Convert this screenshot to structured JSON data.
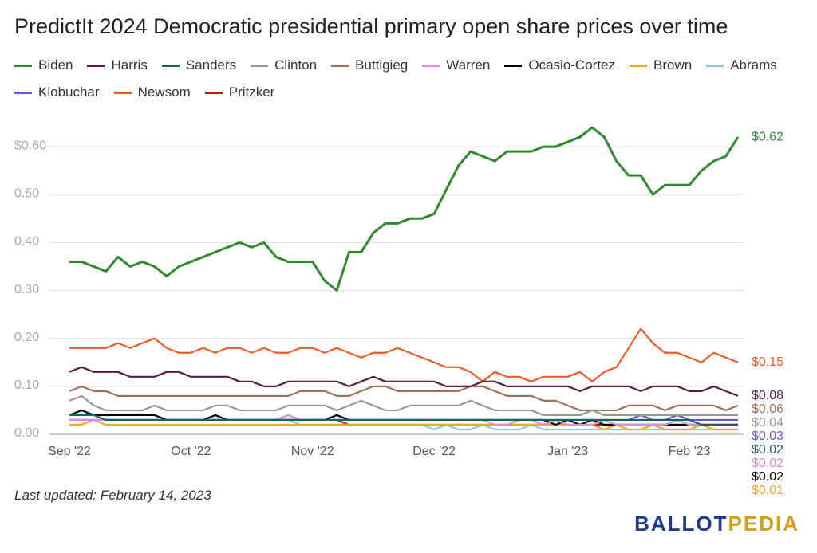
{
  "title": "PredictIt 2024 Democratic presidential primary open share prices over time",
  "note": "Last updated: February 14, 2023",
  "logo": [
    "BALLOT",
    "PEDIA"
  ],
  "chart_data": {
    "type": "line",
    "categories": [
      "Sep '22",
      null,
      null,
      null,
      null,
      null,
      null,
      null,
      null,
      null,
      "Oct '22",
      null,
      null,
      null,
      null,
      null,
      null,
      null,
      null,
      null,
      "Nov '22",
      null,
      null,
      null,
      null,
      null,
      null,
      null,
      null,
      null,
      "Dec '22",
      null,
      null,
      null,
      null,
      null,
      null,
      null,
      null,
      null,
      null,
      "Jan '23",
      null,
      null,
      null,
      null,
      null,
      null,
      null,
      null,
      null,
      "Feb '23",
      null,
      null,
      null,
      null
    ],
    "ylim": [
      0,
      0.65
    ],
    "yticks": [
      {
        "value": 0,
        "label": "0.00"
      },
      {
        "value": 0.1,
        "label": "0.10"
      },
      {
        "value": 0.2,
        "label": "0.20"
      },
      {
        "value": 0.3,
        "label": "0.30"
      },
      {
        "value": 0.4,
        "label": "0.40"
      },
      {
        "value": 0.5,
        "label": "0.50"
      },
      {
        "value": 0.6,
        "label": "$0.60"
      }
    ],
    "grid": true,
    "series": [
      {
        "name": "Biden",
        "color": "#2f8a2f",
        "end_label": "$0.62",
        "values": [
          0.36,
          0.36,
          0.35,
          0.34,
          0.37,
          0.35,
          0.36,
          0.35,
          0.33,
          0.35,
          0.36,
          0.37,
          0.38,
          0.39,
          0.4,
          0.39,
          0.4,
          0.37,
          0.36,
          0.36,
          0.36,
          0.32,
          0.3,
          0.38,
          0.38,
          0.42,
          0.44,
          0.44,
          0.45,
          0.45,
          0.46,
          0.51,
          0.56,
          0.59,
          0.58,
          0.57,
          0.59,
          0.59,
          0.59,
          0.6,
          0.6,
          0.61,
          0.62,
          0.64,
          0.62,
          0.57,
          0.54,
          0.54,
          0.5,
          0.52,
          0.52,
          0.52,
          0.55,
          0.57,
          0.58,
          0.62
        ]
      },
      {
        "name": "Harris",
        "color": "#5b1a4c",
        "end_label": "$0.08",
        "values": [
          0.13,
          0.14,
          0.13,
          0.13,
          0.13,
          0.12,
          0.12,
          0.12,
          0.13,
          0.13,
          0.12,
          0.12,
          0.12,
          0.12,
          0.11,
          0.11,
          0.1,
          0.1,
          0.11,
          0.11,
          0.11,
          0.11,
          0.11,
          0.1,
          0.11,
          0.12,
          0.11,
          0.11,
          0.11,
          0.11,
          0.11,
          0.1,
          0.1,
          0.1,
          0.11,
          0.11,
          0.1,
          0.1,
          0.1,
          0.1,
          0.1,
          0.1,
          0.09,
          0.1,
          0.1,
          0.1,
          0.1,
          0.09,
          0.1,
          0.1,
          0.1,
          0.09,
          0.09,
          0.1,
          0.09,
          0.08
        ]
      },
      {
        "name": "Sanders",
        "color": "#1e5f5f",
        "end_label": "$0.02",
        "values": [
          0.04,
          0.04,
          0.04,
          0.03,
          0.03,
          0.03,
          0.03,
          0.03,
          0.03,
          0.03,
          0.03,
          0.03,
          0.03,
          0.03,
          0.03,
          0.03,
          0.03,
          0.03,
          0.03,
          0.03,
          0.03,
          0.03,
          0.03,
          0.03,
          0.03,
          0.03,
          0.03,
          0.03,
          0.03,
          0.03,
          0.03,
          0.03,
          0.03,
          0.03,
          0.03,
          0.03,
          0.03,
          0.03,
          0.03,
          0.03,
          0.03,
          0.03,
          0.03,
          0.03,
          0.03,
          0.03,
          0.03,
          0.03,
          0.03,
          0.03,
          0.03,
          0.03,
          0.02,
          0.02,
          0.02,
          0.02
        ]
      },
      {
        "name": "Clinton",
        "color": "#999999",
        "end_label": "$0.04",
        "values": [
          0.07,
          0.08,
          0.06,
          0.05,
          0.05,
          0.05,
          0.05,
          0.06,
          0.05,
          0.05,
          0.05,
          0.05,
          0.06,
          0.06,
          0.05,
          0.05,
          0.05,
          0.05,
          0.06,
          0.06,
          0.06,
          0.06,
          0.05,
          0.06,
          0.07,
          0.06,
          0.05,
          0.05,
          0.06,
          0.06,
          0.06,
          0.06,
          0.06,
          0.07,
          0.06,
          0.05,
          0.05,
          0.05,
          0.05,
          0.04,
          0.04,
          0.04,
          0.04,
          0.05,
          0.04,
          0.04,
          0.04,
          0.04,
          0.04,
          0.04,
          0.04,
          0.04,
          0.04,
          0.04,
          0.04,
          0.04
        ]
      },
      {
        "name": "Buttigieg",
        "color": "#a0705a",
        "end_label": "$0.06",
        "values": [
          0.09,
          0.1,
          0.09,
          0.09,
          0.08,
          0.08,
          0.08,
          0.08,
          0.08,
          0.08,
          0.08,
          0.08,
          0.08,
          0.08,
          0.08,
          0.08,
          0.08,
          0.08,
          0.08,
          0.09,
          0.09,
          0.09,
          0.08,
          0.08,
          0.09,
          0.1,
          0.1,
          0.09,
          0.09,
          0.09,
          0.09,
          0.09,
          0.09,
          0.1,
          0.1,
          0.09,
          0.08,
          0.08,
          0.08,
          0.07,
          0.07,
          0.06,
          0.05,
          0.05,
          0.05,
          0.05,
          0.06,
          0.06,
          0.06,
          0.05,
          0.06,
          0.06,
          0.06,
          0.06,
          0.05,
          0.06
        ]
      },
      {
        "name": "Warren",
        "color": "#d98ee0",
        "end_label": "$0.02",
        "values": [
          0.03,
          0.03,
          0.03,
          0.03,
          0.03,
          0.03,
          0.03,
          0.03,
          0.03,
          0.03,
          0.03,
          0.03,
          0.03,
          0.03,
          0.03,
          0.03,
          0.03,
          0.03,
          0.04,
          0.03,
          0.03,
          0.03,
          0.03,
          0.03,
          0.03,
          0.03,
          0.03,
          0.03,
          0.03,
          0.03,
          0.03,
          0.03,
          0.03,
          0.03,
          0.03,
          0.02,
          0.02,
          0.03,
          0.03,
          0.02,
          0.03,
          0.02,
          0.02,
          0.02,
          0.03,
          0.02,
          0.02,
          0.02,
          0.02,
          0.02,
          0.03,
          0.02,
          0.02,
          0.02,
          0.02,
          0.02
        ]
      },
      {
        "name": "Ocasio-Cortez",
        "color": "#000000",
        "end_label": "$0.02",
        "values": [
          0.04,
          0.05,
          0.04,
          0.04,
          0.04,
          0.04,
          0.04,
          0.04,
          0.03,
          0.03,
          0.03,
          0.03,
          0.04,
          0.03,
          0.03,
          0.03,
          0.03,
          0.03,
          0.03,
          0.03,
          0.03,
          0.03,
          0.04,
          0.03,
          0.03,
          0.03,
          0.03,
          0.03,
          0.03,
          0.03,
          0.03,
          0.03,
          0.03,
          0.03,
          0.03,
          0.03,
          0.03,
          0.03,
          0.03,
          0.03,
          0.02,
          0.03,
          0.02,
          0.03,
          0.02,
          0.02,
          0.02,
          0.02,
          0.02,
          0.02,
          0.02,
          0.02,
          0.02,
          0.02,
          0.02,
          0.02
        ]
      },
      {
        "name": "Brown",
        "color": "#f5a623",
        "end_label": "$0.01",
        "values": [
          0.02,
          0.02,
          0.03,
          0.02,
          0.02,
          0.02,
          0.02,
          0.02,
          0.02,
          0.02,
          0.02,
          0.02,
          0.02,
          0.02,
          0.02,
          0.02,
          0.02,
          0.02,
          0.02,
          0.02,
          0.02,
          0.02,
          0.02,
          0.02,
          0.02,
          0.02,
          0.02,
          0.02,
          0.02,
          0.02,
          0.02,
          0.02,
          0.02,
          0.02,
          0.02,
          0.02,
          0.02,
          0.02,
          0.02,
          0.02,
          0.02,
          0.02,
          0.02,
          0.02,
          0.01,
          0.02,
          0.01,
          0.01,
          0.02,
          0.01,
          0.01,
          0.01,
          0.02,
          0.01,
          0.01,
          0.01
        ]
      },
      {
        "name": "Abrams",
        "color": "#8cc8d2",
        "values": [
          0.03,
          0.03,
          0.03,
          0.03,
          0.03,
          0.03,
          0.03,
          0.03,
          0.03,
          0.03,
          0.03,
          0.03,
          0.03,
          0.03,
          0.03,
          0.03,
          0.03,
          0.03,
          0.03,
          0.02,
          0.02,
          0.02,
          0.02,
          0.02,
          0.02,
          0.02,
          0.02,
          0.02,
          0.02,
          0.02,
          0.01,
          0.02,
          0.01,
          0.01,
          0.02,
          0.01,
          0.01,
          0.01,
          0.02,
          0.01,
          0.01,
          0.01,
          0.01,
          0.01,
          0.01,
          0.01,
          0.01,
          0.01,
          0.01,
          0.01,
          0.01,
          0.01,
          0.01,
          0.01,
          0.01,
          0.01
        ]
      },
      {
        "name": "Klobuchar",
        "color": "#6a5acd",
        "end_label": "$0.03",
        "values": [
          0.03,
          0.03,
          0.03,
          0.03,
          0.03,
          0.03,
          0.03,
          0.03,
          0.03,
          0.03,
          0.03,
          0.03,
          0.03,
          0.03,
          0.03,
          0.03,
          0.03,
          0.03,
          0.03,
          0.03,
          0.03,
          0.03,
          0.03,
          0.03,
          0.03,
          0.03,
          0.03,
          0.03,
          0.03,
          0.03,
          0.03,
          0.03,
          0.03,
          0.03,
          0.03,
          0.03,
          0.03,
          0.03,
          0.03,
          0.03,
          0.03,
          0.03,
          0.03,
          0.03,
          0.03,
          0.03,
          0.03,
          0.04,
          0.03,
          0.03,
          0.04,
          0.03,
          0.03,
          0.03,
          0.03,
          0.03
        ]
      },
      {
        "name": "Newsom",
        "color": "#f05a28",
        "end_label": "$0.15",
        "values": [
          0.18,
          0.18,
          0.18,
          0.18,
          0.19,
          0.18,
          0.19,
          0.2,
          0.18,
          0.17,
          0.17,
          0.18,
          0.17,
          0.18,
          0.18,
          0.17,
          0.18,
          0.17,
          0.17,
          0.18,
          0.18,
          0.17,
          0.18,
          0.17,
          0.16,
          0.17,
          0.17,
          0.18,
          0.17,
          0.16,
          0.15,
          0.14,
          0.14,
          0.13,
          0.11,
          0.13,
          0.12,
          0.12,
          0.11,
          0.12,
          0.12,
          0.12,
          0.13,
          0.11,
          0.13,
          0.14,
          0.18,
          0.22,
          0.19,
          0.17,
          0.17,
          0.16,
          0.15,
          0.17,
          0.16,
          0.15
        ]
      },
      {
        "name": "Pritzker",
        "color": "#c0140c",
        "values": [
          0.03,
          0.03,
          0.03,
          0.03,
          0.03,
          0.03,
          0.03,
          0.03,
          0.03,
          0.03,
          0.03,
          0.03,
          0.03,
          0.03,
          0.03,
          0.03,
          0.03,
          0.03,
          0.03,
          0.03,
          0.03,
          0.03,
          0.03,
          0.02,
          0.02,
          0.02,
          0.02,
          0.02,
          0.02,
          0.02,
          0.02,
          0.02,
          0.02,
          0.02,
          0.02,
          0.02,
          0.02,
          0.02,
          0.02,
          0.02,
          0.02,
          0.02,
          0.02,
          0.02,
          0.02,
          0.02,
          0.02,
          0.02,
          0.02,
          0.02,
          0.02,
          0.02,
          0.02,
          0.02,
          0.02,
          0.02
        ]
      }
    ]
  }
}
